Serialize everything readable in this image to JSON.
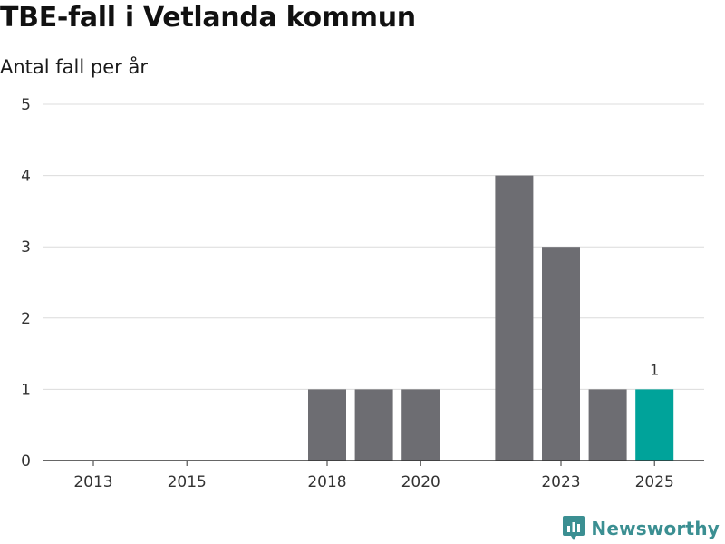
{
  "title": "TBE-fall i Vetlanda kommun",
  "subtitle": "Antal fall per år",
  "brand": {
    "name": "Newsworthy",
    "icon": "newsworthy-logo-icon",
    "color": "#3b8f92"
  },
  "colors": {
    "bar": "#6d6d72",
    "highlight": "#00a39a",
    "grid": "#dcdcdc",
    "axis": "#333333"
  },
  "chart_data": {
    "type": "bar",
    "title": "TBE-fall i Vetlanda kommun",
    "subtitle": "Antal fall per år",
    "xlabel": "",
    "ylabel": "",
    "x": [
      2013,
      2014,
      2015,
      2016,
      2017,
      2018,
      2019,
      2020,
      2021,
      2022,
      2023,
      2024,
      2025
    ],
    "values": [
      0,
      0,
      0,
      0,
      0,
      1,
      1,
      1,
      0,
      4,
      3,
      1,
      1
    ],
    "highlight_x": 2025,
    "data_labels": [
      {
        "x": 2025,
        "text": "1"
      }
    ],
    "x_ticks": [
      2013,
      2015,
      2018,
      2020,
      2023,
      2025
    ],
    "y_ticks": [
      0,
      1,
      2,
      3,
      4,
      5
    ],
    "ylim": [
      0,
      5
    ],
    "grid": true,
    "legend": "none"
  }
}
